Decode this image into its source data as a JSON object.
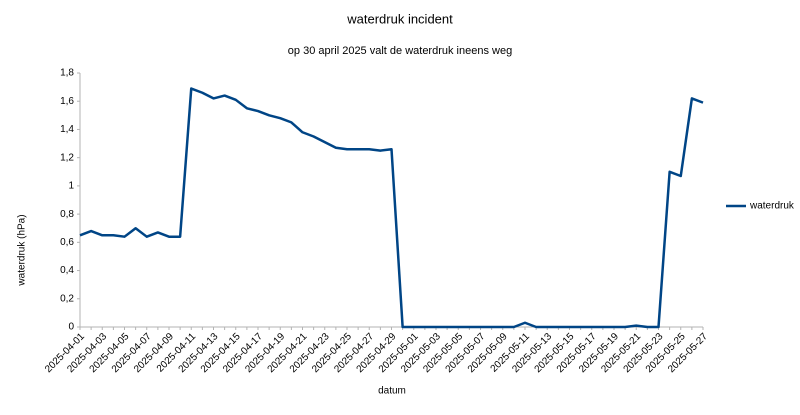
{
  "chart_data": {
    "type": "line",
    "title": "waterdruk incident",
    "subtitle": "op 30 april 2025 valt de waterdruk ineens weg",
    "x_label": "datum",
    "y_label": "waterdruk (hPa)",
    "categories": [
      "2025-04-01",
      null,
      "2025-04-03",
      null,
      "2025-04-05",
      null,
      "2025-04-07",
      null,
      "2025-04-09",
      null,
      "2025-04-11",
      null,
      "2025-04-13",
      null,
      "2025-04-15",
      null,
      "2025-04-17",
      null,
      "2025-04-19",
      null,
      "2025-04-21",
      null,
      "2025-04-23",
      null,
      "2025-04-25",
      null,
      "2025-04-27",
      null,
      "2025-04-29",
      null,
      "2025-05-01",
      null,
      "2025-05-03",
      null,
      "2025-05-05",
      null,
      "2025-05-07",
      null,
      "2025-05-09",
      null,
      "2025-05-11",
      null,
      "2025-05-13",
      null,
      "2025-05-15",
      null,
      "2025-05-17",
      null,
      "2025-05-19",
      null,
      "2025-05-21",
      null,
      "2025-05-23",
      null,
      "2025-05-25",
      null,
      "2025-05-27"
    ],
    "series": [
      {
        "name": "waterdruk",
        "color": "#004586",
        "values": [
          0.65,
          0.68,
          0.65,
          0.65,
          0.64,
          0.7,
          0.64,
          0.67,
          0.64,
          0.64,
          1.69,
          1.66,
          1.62,
          1.64,
          1.61,
          1.55,
          1.53,
          1.5,
          1.48,
          1.45,
          1.38,
          1.35,
          1.31,
          1.27,
          1.26,
          1.26,
          1.26,
          1.25,
          1.26,
          0,
          0,
          0,
          0,
          0,
          0,
          0,
          0,
          0,
          0,
          0,
          0.03,
          0,
          0,
          0,
          0,
          0,
          0,
          0,
          0,
          0,
          0.01,
          0,
          0,
          1.1,
          1.07,
          1.62,
          1.59
        ]
      }
    ],
    "ylim": [
      0,
      1.8
    ],
    "yticks": [
      0,
      {
        "value": 0.2,
        "label": "0,2"
      },
      {
        "value": 0.4,
        "label": "0,4"
      },
      {
        "value": 0.6,
        "label": "0,6"
      },
      {
        "value": 0.8,
        "label": "0,8"
      },
      1,
      {
        "value": 1.2,
        "label": "1,2"
      },
      {
        "value": 1.4,
        "label": "1,4"
      },
      {
        "value": 1.6,
        "label": "1,6"
      },
      {
        "value": 1.8,
        "label": "1,8"
      }
    ],
    "grid": false,
    "legend": "right"
  }
}
